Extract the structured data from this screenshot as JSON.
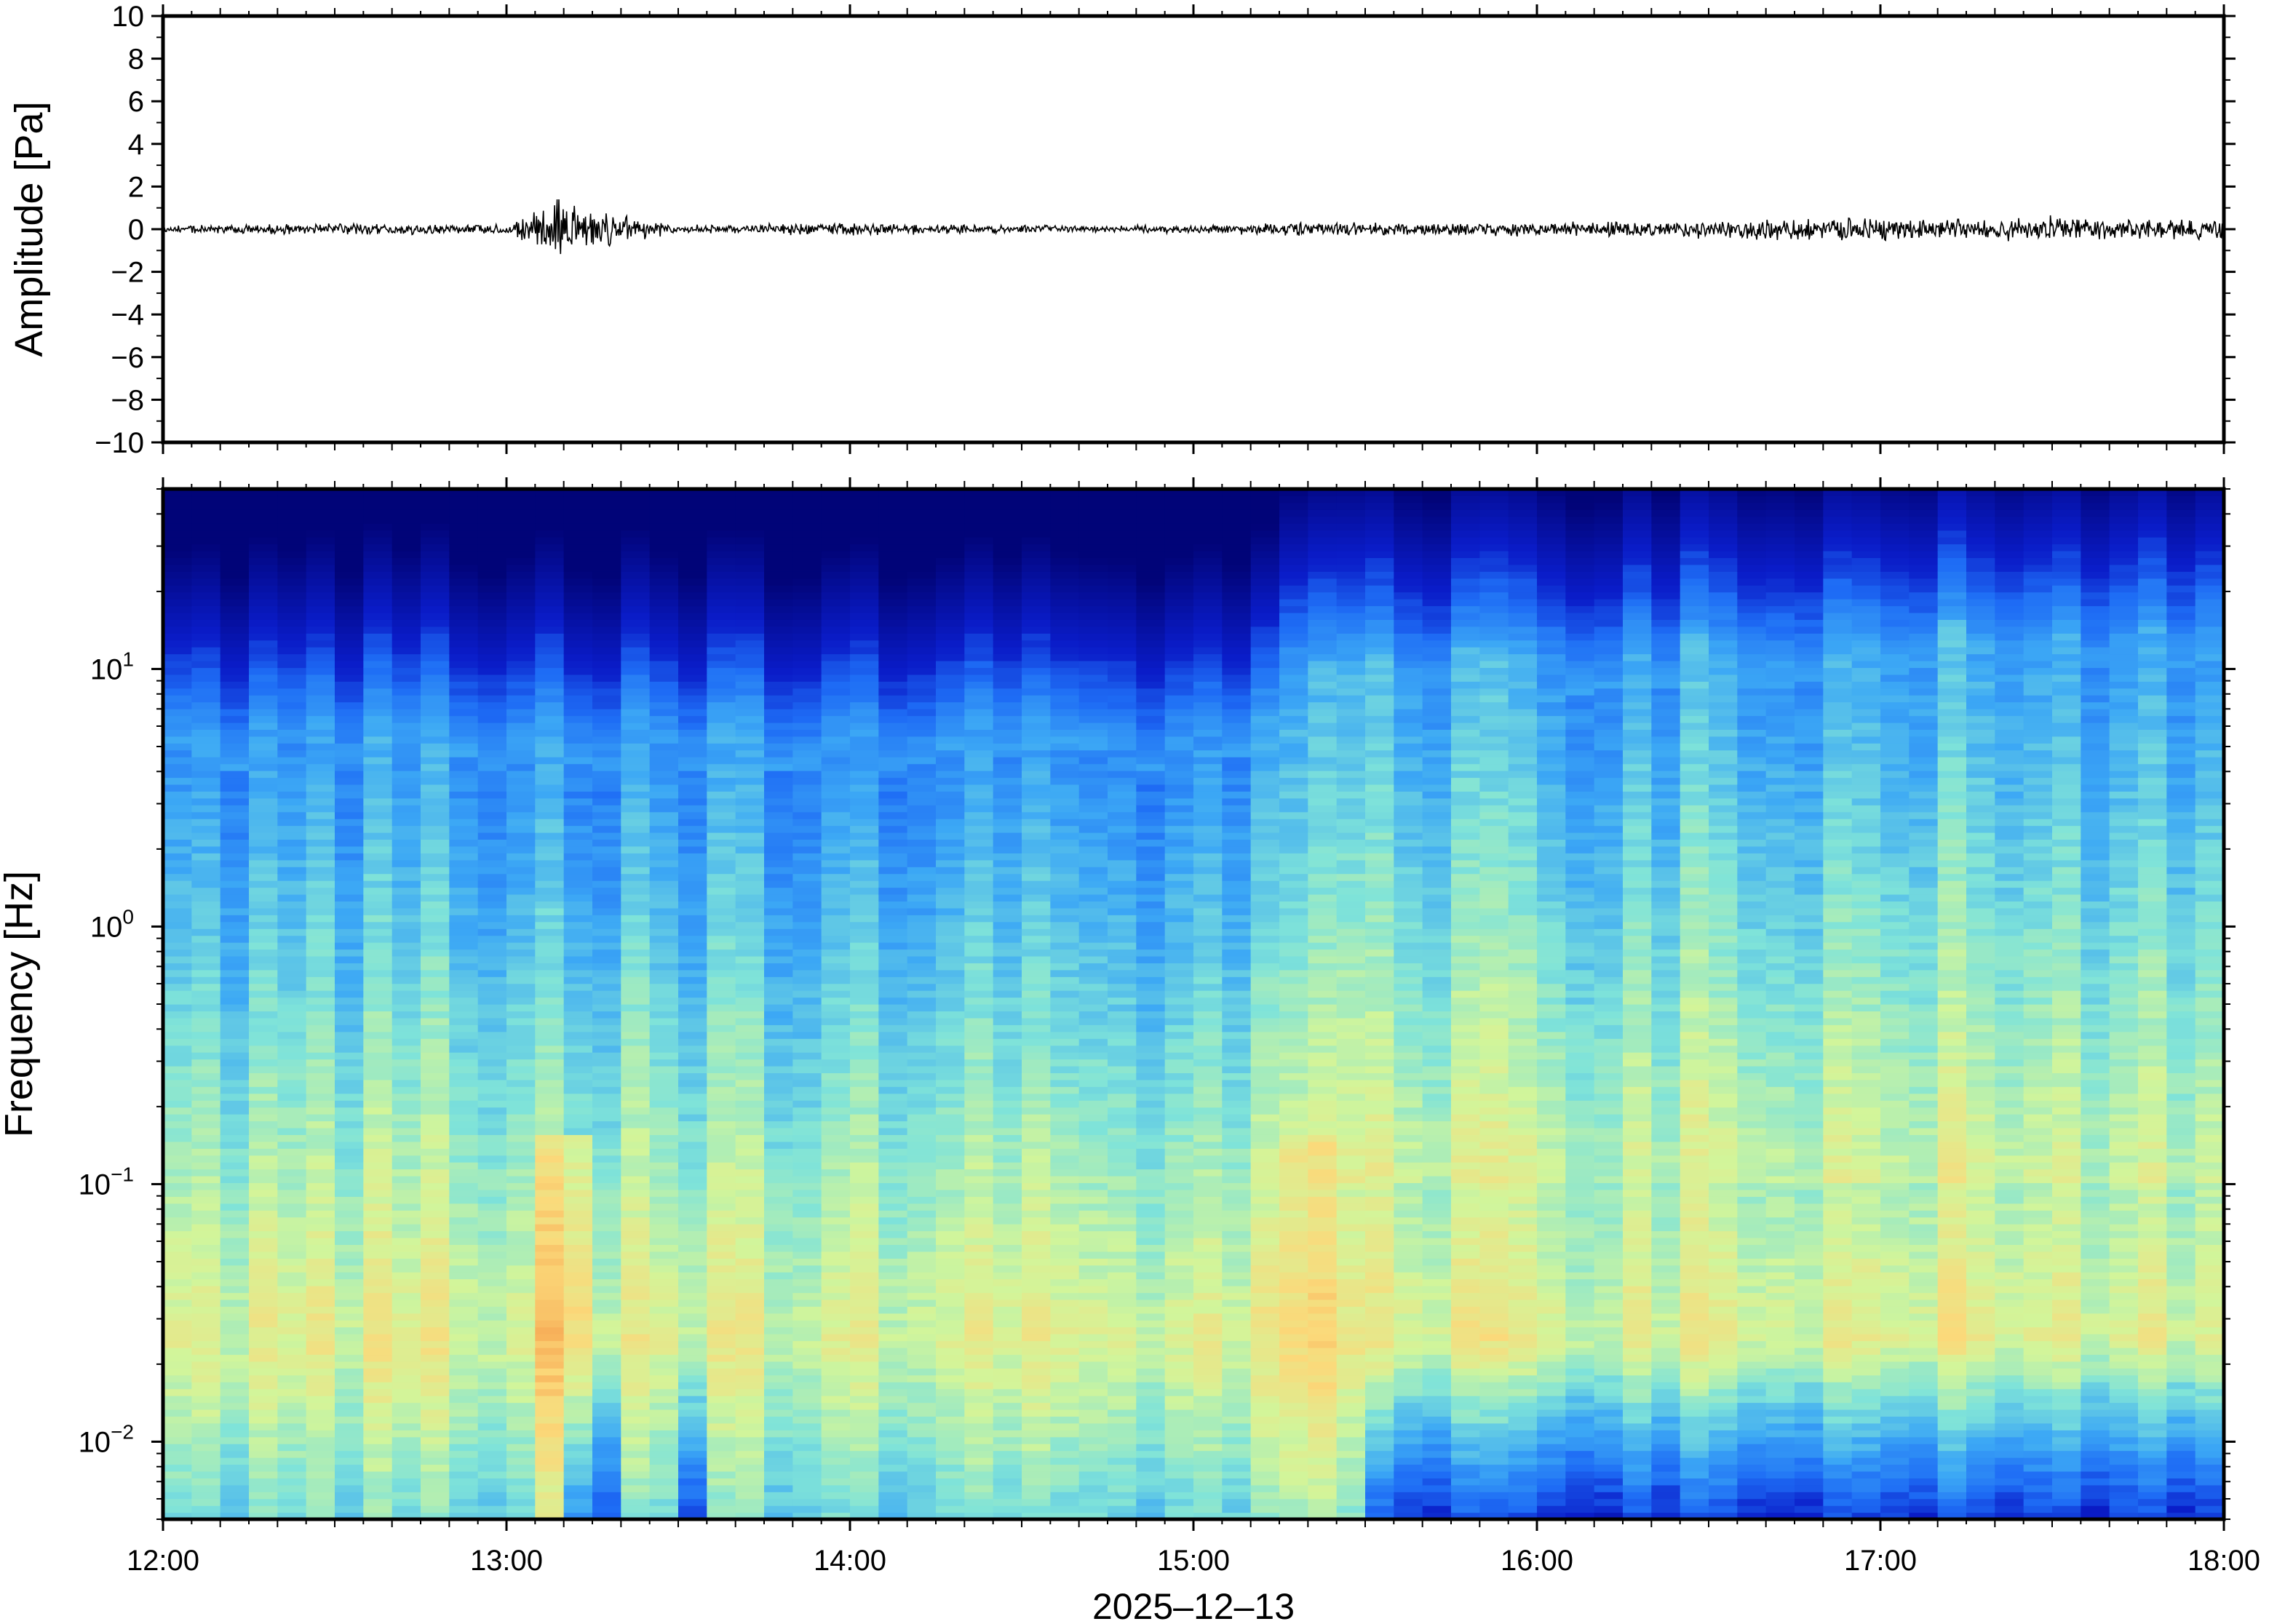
{
  "figure": {
    "date_label": "2025‒12‒13"
  },
  "chart_data": [
    {
      "type": "line",
      "panel": "waveform",
      "ylabel": "Amplitude [Pa]",
      "ylim": [
        -10,
        10
      ],
      "y_ticks": [
        10,
        8,
        6,
        4,
        2,
        0,
        -2,
        -4,
        -6,
        -8,
        -10
      ],
      "y_tick_labels": [
        "10",
        "8",
        "6",
        "4",
        "2",
        "0",
        "−2",
        "−4",
        "−6",
        "−8",
        "−10"
      ],
      "x_range": [
        "12:00",
        "18:00"
      ],
      "series": [
        {
          "color": "#000000",
          "x_hours": [
            12.0,
            12.5,
            13.0,
            13.15,
            13.5,
            14.0,
            14.5,
            15.0,
            15.3,
            15.5,
            16.0,
            16.4,
            16.7,
            17.0,
            17.3,
            17.5,
            17.8,
            18.0
          ],
          "envelope_pa": [
            0.2,
            0.3,
            0.25,
            1.4,
            0.2,
            0.35,
            0.2,
            0.2,
            0.4,
            0.35,
            0.35,
            0.45,
            0.55,
            0.6,
            0.5,
            0.7,
            0.5,
            0.5
          ]
        }
      ]
    },
    {
      "type": "heatmap",
      "panel": "spectrogram",
      "ylabel": "Frequency [Hz]",
      "y_scale": "log",
      "ylim": [
        0.005,
        50
      ],
      "y_tick_labels": [
        {
          "value": 10,
          "base": "10",
          "exp": "1"
        },
        {
          "value": 1,
          "base": "10",
          "exp": "0"
        },
        {
          "value": 0.1,
          "base": "10",
          "exp": "−1"
        },
        {
          "value": 0.01,
          "base": "10",
          "exp": "−2"
        }
      ],
      "x_ticks": [
        "12:00",
        "13:00",
        "14:00",
        "15:00",
        "16:00",
        "17:00",
        "18:00"
      ],
      "xlabel": "2025‒12‒13",
      "colormap": [
        "#00006b",
        "#0a1cc8",
        "#1e6cf5",
        "#3ca8f5",
        "#7fe3d9",
        "#d2f59a",
        "#fbd97a",
        "#f6a04d"
      ],
      "features": [
        {
          "event": "broadband high-energy column",
          "time": "13:10"
        },
        {
          "event": "low-frequency energy decrease",
          "time": "15:30"
        },
        {
          "event": "upper frequency cutoff rises",
          "time": "15:15"
        }
      ]
    }
  ]
}
